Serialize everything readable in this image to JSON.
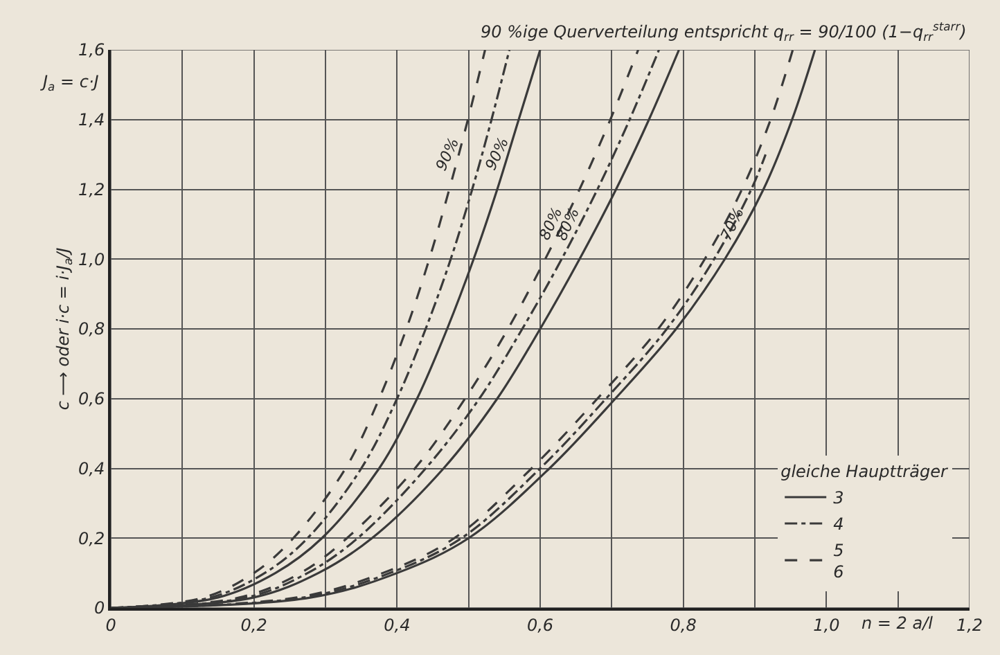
{
  "chart_data": {
    "type": "line",
    "title": "90 %ige Querverteilung entspricht q$_{rr}$ = 90/100 (1−q$_{rr}$$^{starr}$)",
    "xlabel": "n = 2 a/l",
    "ylabel": "c ⟶ oder i·c = i·J$_{a}$/J",
    "legend_title": "gleiche Hauptträger",
    "legend": "bottom right",
    "grid": true,
    "marker": "none",
    "xlim": [
      0,
      1.2
    ],
    "ylim": [
      0,
      1.6
    ],
    "xticks": [
      {
        "value": 0,
        "label": "0"
      },
      {
        "value": 0.1,
        "label": null
      },
      {
        "value": 0.2,
        "label": "0,2"
      },
      {
        "value": 0.3,
        "label": null
      },
      {
        "value": 0.4,
        "label": "0,4"
      },
      {
        "value": 0.5,
        "label": null
      },
      {
        "value": 0.6,
        "label": "0,6"
      },
      {
        "value": 0.7,
        "label": null
      },
      {
        "value": 0.8,
        "label": "0,8"
      },
      {
        "value": 0.9,
        "label": null
      },
      {
        "value": 1.0,
        "label": "1,0"
      },
      {
        "value": 1.1,
        "label": null
      },
      {
        "value": 1.2,
        "label": "1,2"
      }
    ],
    "yticks": [
      {
        "value": 0,
        "label": "0"
      },
      {
        "value": 0.2,
        "label": "0,2"
      },
      {
        "value": 0.4,
        "label": "0,4"
      },
      {
        "value": 0.6,
        "label": "0,6"
      },
      {
        "value": 0.8,
        "label": "0,8"
      },
      {
        "value": 1.0,
        "label": "1,0"
      },
      {
        "value": 1.2,
        "label": "1,2"
      },
      {
        "value": 1.4,
        "label": "1,4"
      },
      {
        "value": 1.6,
        "label": "1,6"
      }
    ],
    "annotations": [
      "J$_{a}$ = c·J",
      {
        "text": "90%",
        "x": 0.486,
        "y": 1.3
      },
      {
        "text": "90%",
        "x": 0.555,
        "y": 1.3
      },
      {
        "text": "80%",
        "x": 0.631,
        "y": 1.1
      },
      {
        "text": "80%",
        "x": 0.655,
        "y": 1.1
      },
      {
        "text": "70%",
        "x": 0.885,
        "y": 1.1
      }
    ],
    "series": [
      {
        "name": "3",
        "color": "#3a3a3a",
        "line_style": "solid",
        "x": [
          0,
          0.15,
          0.23,
          0.295,
          0.375,
          0.428,
          0.47,
          0.507,
          0.54,
          0.57,
          0.6
        ],
        "values": [
          0,
          0.03,
          0.1,
          0.2,
          0.4,
          0.6,
          0.8,
          1.0,
          1.2,
          1.4,
          1.6
        ]
      },
      {
        "name": "4",
        "color": "#3a3a3a",
        "line_style": "dashdot",
        "x": [
          0,
          0.14,
          0.215,
          0.275,
          0.35,
          0.4,
          0.44,
          0.475,
          0.505,
          0.532,
          0.557
        ],
        "values": [
          0,
          0.03,
          0.1,
          0.2,
          0.4,
          0.6,
          0.8,
          1.0,
          1.2,
          1.4,
          1.6
        ]
      },
      {
        "name": "5\n6",
        "color": "#3a3a3a",
        "line_style": "dashed",
        "x": [
          0,
          0.13,
          0.2,
          0.255,
          0.328,
          0.375,
          0.413,
          0.445,
          0.473,
          0.499,
          0.523
        ],
        "values": [
          0,
          0.03,
          0.1,
          0.2,
          0.4,
          0.6,
          0.8,
          1.0,
          1.2,
          1.4,
          1.6
        ]
      },
      {
        "color": "#3a3a3a",
        "line_style": "solid",
        "x": [
          0,
          0.2,
          0.29,
          0.365,
          0.465,
          0.54,
          0.6,
          0.655,
          0.706,
          0.752,
          0.794
        ],
        "values": [
          0,
          0.03,
          0.1,
          0.2,
          0.4,
          0.6,
          0.8,
          1.0,
          1.2,
          1.4,
          1.6
        ]
      },
      {
        "color": "#3a3a3a",
        "line_style": "dashdot",
        "x": [
          0,
          0.19,
          0.275,
          0.345,
          0.44,
          0.515,
          0.575,
          0.63,
          0.68,
          0.725,
          0.766
        ],
        "values": [
          0,
          0.03,
          0.1,
          0.2,
          0.4,
          0.6,
          0.8,
          1.0,
          1.2,
          1.4,
          1.6
        ]
      },
      {
        "color": "#3a3a3a",
        "line_style": "dashed",
        "x": [
          0,
          0.18,
          0.265,
          0.33,
          0.425,
          0.495,
          0.555,
          0.607,
          0.655,
          0.698,
          0.737
        ],
        "values": [
          0,
          0.03,
          0.1,
          0.2,
          0.4,
          0.6,
          0.8,
          1.0,
          1.2,
          1.4,
          1.6
        ]
      },
      {
        "color": "#3a3a3a",
        "line_style": "solid",
        "x": [
          0,
          0.28,
          0.4,
          0.5,
          0.613,
          0.705,
          0.79,
          0.858,
          0.912,
          0.952,
          0.984
        ],
        "values": [
          0,
          0.03,
          0.1,
          0.2,
          0.4,
          0.6,
          0.8,
          1.0,
          1.2,
          1.4,
          1.6
        ]
      },
      {
        "color": "#3a3a3a",
        "line_style": "dashdot",
        "x": [
          0,
          0.27,
          0.39,
          0.49,
          0.6,
          0.692,
          0.777,
          0.843,
          0.895,
          0.915
        ],
        "values": [
          0,
          0.03,
          0.1,
          0.2,
          0.4,
          0.6,
          0.8,
          1.0,
          1.2,
          1.3
        ]
      },
      {
        "color": "#3a3a3a",
        "line_style": "dashed",
        "x": [
          0,
          0.26,
          0.38,
          0.48,
          0.588,
          0.68,
          0.765,
          0.83,
          0.882,
          0.922,
          0.953
        ],
        "values": [
          0,
          0.03,
          0.1,
          0.2,
          0.4,
          0.6,
          0.8,
          1.0,
          1.2,
          1.4,
          1.6
        ]
      }
    ]
  }
}
